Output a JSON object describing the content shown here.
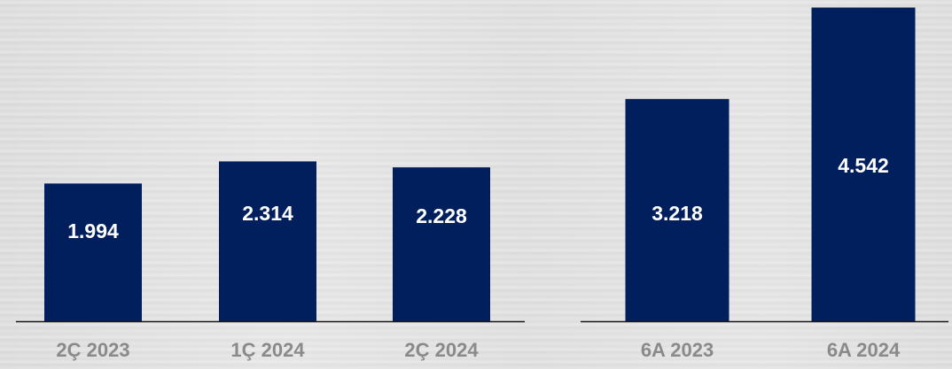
{
  "chart_data": [
    {
      "type": "bar",
      "categories": [
        "2Ç 2023",
        "1Ç 2024",
        "2Ç 2024"
      ],
      "values": [
        1994,
        2314,
        2228
      ],
      "value_labels": [
        "1.994",
        "2.314",
        "2.228"
      ],
      "ylim": [
        0,
        4600
      ],
      "grid": false,
      "bar_color": "#001f5c"
    },
    {
      "type": "bar",
      "categories": [
        "6A 2023",
        "6A 2024"
      ],
      "values": [
        3218,
        4542
      ],
      "value_labels": [
        "3.218",
        "4.542"
      ],
      "ylim": [
        0,
        4600
      ],
      "grid": false,
      "bar_color": "#001f5c"
    }
  ],
  "colors": {
    "bar": "#001f5c",
    "axis": "#1a1a1a",
    "category_text": "#8a8a8a",
    "value_text": "#ffffff"
  }
}
